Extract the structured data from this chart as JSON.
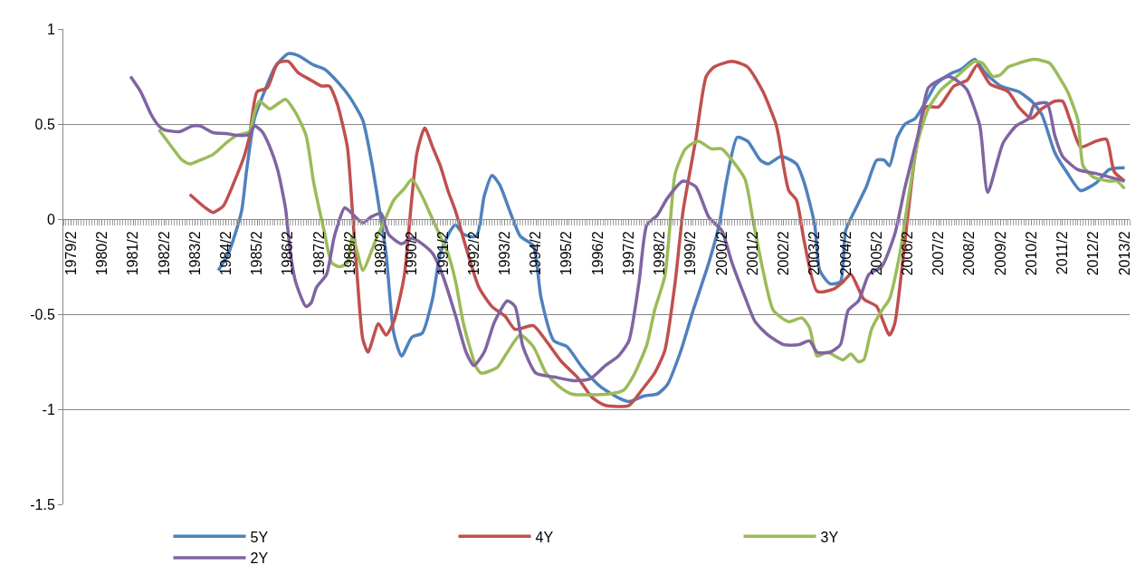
{
  "chart_data": {
    "type": "line",
    "xlim": [
      "1978-11",
      "2013-04"
    ],
    "xticks": [
      {
        "value": "1979-02",
        "label": "1979/2"
      },
      {
        "value": "1980-02",
        "label": "1980/2"
      },
      {
        "value": "1981-02",
        "label": "1981/2"
      },
      {
        "value": "1982-02",
        "label": "1982/2"
      },
      {
        "value": "1983-02",
        "label": "1983/2"
      },
      {
        "value": "1984-02",
        "label": "1984/2"
      },
      {
        "value": "1985-02",
        "label": "1985/2"
      },
      {
        "value": "1986-02",
        "label": "1986/2"
      },
      {
        "value": "1987-02",
        "label": "1987/2"
      },
      {
        "value": "1988-02",
        "label": "1988/2"
      },
      {
        "value": "1989-02",
        "label": "1989/2"
      },
      {
        "value": "1990-02",
        "label": "1990/2"
      },
      {
        "value": "1991-02",
        "label": "1991/2"
      },
      {
        "value": "1992-02",
        "label": "1992/2"
      },
      {
        "value": "1993-02",
        "label": "1993/2"
      },
      {
        "value": "1994-02",
        "label": "1994/2"
      },
      {
        "value": "1995-02",
        "label": "1995/2"
      },
      {
        "value": "1996-02",
        "label": "1996/2"
      },
      {
        "value": "1997-02",
        "label": "1997/2"
      },
      {
        "value": "1998-02",
        "label": "1998/2"
      },
      {
        "value": "1999-02",
        "label": "1999/2"
      },
      {
        "value": "2000-02",
        "label": "2000/2"
      },
      {
        "value": "2001-02",
        "label": "2001/2"
      },
      {
        "value": "2002-02",
        "label": "2002/2"
      },
      {
        "value": "2003-02",
        "label": "2003/2"
      },
      {
        "value": "2004-02",
        "label": "2004/2"
      },
      {
        "value": "2005-02",
        "label": "2005/2"
      },
      {
        "value": "2006-02",
        "label": "2006/2"
      },
      {
        "value": "2007-02",
        "label": "2007/2"
      },
      {
        "value": "2008-02",
        "label": "2008/2"
      },
      {
        "value": "2009-02",
        "label": "2009/2"
      },
      {
        "value": "2010-02",
        "label": "2010/2"
      },
      {
        "value": "2011-02",
        "label": "2011/2"
      },
      {
        "value": "2012-02",
        "label": "2012/2"
      },
      {
        "value": "2013-02",
        "label": "2013/2"
      }
    ],
    "ylim": [
      -1.5,
      1
    ],
    "yticks": [
      -1.5,
      -1,
      -0.5,
      0,
      0.5,
      1
    ],
    "grid": "y",
    "legend": "bottom",
    "marker": "none",
    "line_style": "solid",
    "series": [
      {
        "name": "5Y",
        "color": "#4f81bd",
        "x": [
          "1983-11",
          "1984-03",
          "1984-08",
          "1984-10",
          "1985-01",
          "1985-04",
          "1985-09",
          "1986-02",
          "1986-06",
          "1986-12",
          "1987-04",
          "1987-10",
          "1988-02",
          "1988-07",
          "1988-10",
          "1989-01",
          "1989-04",
          "1989-07",
          "1989-10",
          "1990-02",
          "1990-06",
          "1990-10",
          "1991-01",
          "1991-05",
          "1991-07",
          "1991-10",
          "1992-03",
          "1992-06",
          "1992-09",
          "1992-12",
          "1993-04",
          "1993-08",
          "1994-01",
          "1994-04",
          "1994-09",
          "1995-02",
          "1995-08",
          "1996-03",
          "1996-10",
          "1997-02",
          "1997-08",
          "1998-01",
          "1998-05",
          "1998-10",
          "1999-03",
          "1999-09",
          "2000-01",
          "2000-04",
          "2000-08",
          "2000-12",
          "2001-05",
          "2001-08",
          "2002-01",
          "2002-07",
          "2002-10",
          "2003-02",
          "2003-04",
          "2003-08",
          "2003-12",
          "2004-02",
          "2004-07",
          "2004-10",
          "2005-02",
          "2005-05",
          "2005-07",
          "2005-10",
          "2006-01",
          "2006-05",
          "2006-10",
          "2007-01",
          "2007-06",
          "2007-11",
          "2008-04",
          "2008-08",
          "2009-02",
          "2009-09",
          "2010-02",
          "2010-06",
          "2010-11",
          "2011-04",
          "2011-09",
          "2012-03",
          "2012-08",
          "2013-02"
        ],
        "values": [
          -0.27,
          -0.18,
          0.04,
          0.26,
          0.53,
          0.64,
          0.8,
          0.87,
          0.86,
          0.81,
          0.79,
          0.71,
          0.64,
          0.52,
          0.33,
          0.085,
          -0.18,
          -0.6,
          -0.72,
          -0.62,
          -0.6,
          -0.42,
          -0.18,
          -0.06,
          -0.03,
          -0.08,
          -0.09,
          0.12,
          0.23,
          0.18,
          0.04,
          -0.09,
          -0.14,
          -0.41,
          -0.64,
          -0.67,
          -0.78,
          -0.88,
          -0.94,
          -0.96,
          -0.93,
          -0.92,
          -0.87,
          -0.7,
          -0.48,
          -0.23,
          -0.03,
          0.21,
          0.43,
          0.41,
          0.31,
          0.29,
          0.33,
          0.29,
          0.19,
          -0.03,
          -0.27,
          -0.34,
          -0.33,
          -0.06,
          0.085,
          0.17,
          0.31,
          0.31,
          0.28,
          0.43,
          0.5,
          0.53,
          0.64,
          0.71,
          0.76,
          0.79,
          0.84,
          0.77,
          0.7,
          0.67,
          0.62,
          0.55,
          0.35,
          0.24,
          0.15,
          0.19,
          0.26,
          0.27
        ]
      },
      {
        "name": "4Y",
        "color": "#c0504d",
        "x": [
          "1982-12",
          "1983-06",
          "1983-09",
          "1984-01",
          "1984-05",
          "1984-09",
          "1984-11",
          "1985-02",
          "1985-06",
          "1985-10",
          "1986-02",
          "1986-06",
          "1986-11",
          "1987-03",
          "1987-06",
          "1987-09",
          "1988-01",
          "1988-03",
          "1988-05",
          "1988-07",
          "1988-09",
          "1989-01",
          "1989-04",
          "1989-07",
          "1989-11",
          "1990-02",
          "1990-04",
          "1990-07",
          "1990-10",
          "1991-01",
          "1991-04",
          "1991-07",
          "1991-11",
          "1992-04",
          "1992-09",
          "1993-02",
          "1993-06",
          "1994-01",
          "1994-06",
          "1994-12",
          "1995-06",
          "1995-12",
          "1996-05",
          "1997-02",
          "1997-07",
          "1997-12",
          "1998-04",
          "1998-08",
          "1998-11",
          "1999-04",
          "1999-08",
          "1999-11",
          "2000-06",
          "2000-12",
          "2001-06",
          "2001-11",
          "2001-12",
          "2002-04",
          "2002-07",
          "2002-10",
          "2003-03",
          "2003-09",
          "2004-01",
          "2004-04",
          "2004-09",
          "2005-02",
          "2005-07",
          "2005-09",
          "2006-01",
          "2006-05",
          "2006-09",
          "2007-02",
          "2007-08",
          "2008-01",
          "2008-05",
          "2008-10",
          "2009-05",
          "2009-09",
          "2010-02",
          "2010-06",
          "2010-11",
          "2011-02",
          "2011-05",
          "2011-09",
          "2012-03",
          "2012-07",
          "2012-10",
          "2013-02"
        ],
        "values": [
          0.13,
          0.06,
          0.035,
          0.07,
          0.19,
          0.33,
          0.43,
          0.67,
          0.69,
          0.82,
          0.83,
          0.77,
          0.73,
          0.7,
          0.7,
          0.61,
          0.38,
          0.04,
          -0.33,
          -0.63,
          -0.7,
          -0.55,
          -0.61,
          -0.54,
          -0.3,
          0.12,
          0.35,
          0.48,
          0.38,
          0.28,
          0.15,
          0.04,
          -0.15,
          -0.36,
          -0.46,
          -0.51,
          -0.58,
          -0.56,
          -0.64,
          -0.75,
          -0.83,
          -0.94,
          -0.98,
          -0.98,
          -0.9,
          -0.81,
          -0.69,
          -0.33,
          0.04,
          0.42,
          0.75,
          0.8,
          0.83,
          0.8,
          0.67,
          0.5,
          0.44,
          0.15,
          0.1,
          -0.12,
          -0.38,
          -0.37,
          -0.33,
          -0.29,
          -0.42,
          -0.46,
          -0.61,
          -0.55,
          -0.11,
          0.34,
          0.59,
          0.59,
          0.7,
          0.73,
          0.81,
          0.71,
          0.67,
          0.59,
          0.53,
          0.58,
          0.62,
          0.62,
          0.52,
          0.38,
          0.41,
          0.42,
          0.25,
          0.2
        ]
      },
      {
        "name": "3Y",
        "color": "#9bbb59",
        "x": [
          "1981-12",
          "1982-05",
          "1982-09",
          "1982-12",
          "1983-04",
          "1983-09",
          "1984-02",
          "1984-06",
          "1984-11",
          "1985-01",
          "1985-03",
          "1985-07",
          "1986-01",
          "1986-05",
          "1986-09",
          "1986-12",
          "1987-04",
          "1987-07",
          "1987-10",
          "1988-01",
          "1988-03",
          "1988-05",
          "1988-07",
          "1988-12",
          "1989-04",
          "1989-07",
          "1989-11",
          "1990-02",
          "1990-06",
          "1990-09",
          "1991-01",
          "1991-04",
          "1991-07",
          "1991-10",
          "1992-03",
          "1992-05",
          "1992-11",
          "1993-03",
          "1993-08",
          "1994-01",
          "1994-06",
          "1994-11",
          "1995-04",
          "1996-06",
          "1996-12",
          "1997-04",
          "1997-09",
          "1997-12",
          "1998-04",
          "1998-06",
          "1998-08",
          "1998-12",
          "1999-05",
          "1999-10",
          "2000-02",
          "2000-06",
          "2000-11",
          "2001-02",
          "2001-06",
          "2001-10",
          "2002-04",
          "2002-09",
          "2002-12",
          "2003-03",
          "2003-07",
          "2004-01",
          "2004-04",
          "2004-07",
          "2004-09",
          "2004-12",
          "2005-04",
          "2005-07",
          "2005-11",
          "2006-02",
          "2006-06",
          "2006-10",
          "2007-03",
          "2007-09",
          "2008-04",
          "2008-07",
          "2008-11",
          "2009-02",
          "2009-05",
          "2009-09",
          "2010-03",
          "2010-09",
          "2011-01",
          "2011-04",
          "2011-08",
          "2011-10",
          "2012-02",
          "2012-08",
          "2012-11",
          "2013-02"
        ],
        "values": [
          0.47,
          0.38,
          0.31,
          0.29,
          0.31,
          0.34,
          0.4,
          0.44,
          0.46,
          0.56,
          0.62,
          0.58,
          0.63,
          0.56,
          0.44,
          0.19,
          -0.06,
          -0.23,
          -0.25,
          -0.23,
          -0.09,
          -0.18,
          -0.27,
          -0.11,
          0.01,
          0.1,
          0.16,
          0.21,
          0.12,
          0.03,
          -0.09,
          -0.18,
          -0.33,
          -0.55,
          -0.78,
          -0.81,
          -0.78,
          -0.7,
          -0.61,
          -0.67,
          -0.81,
          -0.88,
          -0.92,
          -0.92,
          -0.9,
          -0.82,
          -0.66,
          -0.48,
          -0.3,
          -0.03,
          0.24,
          0.37,
          0.41,
          0.37,
          0.37,
          0.31,
          0.21,
          0.0,
          -0.27,
          -0.48,
          -0.54,
          -0.52,
          -0.57,
          -0.72,
          -0.7,
          -0.74,
          -0.71,
          -0.75,
          -0.74,
          -0.58,
          -0.48,
          -0.42,
          -0.18,
          0.085,
          0.41,
          0.58,
          0.68,
          0.75,
          0.83,
          0.82,
          0.75,
          0.76,
          0.8,
          0.82,
          0.84,
          0.82,
          0.74,
          0.67,
          0.52,
          0.28,
          0.22,
          0.2,
          0.2,
          0.16
        ]
      },
      {
        "name": "2Y",
        "color": "#8064a2",
        "x": [
          "1981-01",
          "1981-05",
          "1981-09",
          "1981-12",
          "1982-02",
          "1982-08",
          "1983-01",
          "1983-04",
          "1983-09",
          "1984-02",
          "1984-07",
          "1984-11",
          "1985-01",
          "1985-04",
          "1985-07",
          "1985-10",
          "1986-01",
          "1986-03",
          "1986-05",
          "1986-09",
          "1986-11",
          "1987-01",
          "1987-05",
          "1987-08",
          "1987-12",
          "1988-02",
          "1988-07",
          "1988-10",
          "1989-02",
          "1989-05",
          "1989-10",
          "1990-02",
          "1990-06",
          "1990-10",
          "1991-02",
          "1991-07",
          "1991-11",
          "1992-02",
          "1992-06",
          "1992-10",
          "1993-03",
          "1993-06",
          "1993-09",
          "1994-02",
          "1994-09",
          "1995-05",
          "1995-11",
          "1996-05",
          "1996-10",
          "1997-02",
          "1997-06",
          "1997-09",
          "1998-01",
          "1998-05",
          "1998-11",
          "1999-04",
          "1999-09",
          "2000-02",
          "2000-06",
          "2000-11",
          "2001-03",
          "2001-08",
          "2002-02",
          "2002-08",
          "2002-12",
          "2003-03",
          "2003-08",
          "2003-12",
          "2004-03",
          "2004-07",
          "2004-11",
          "2005-04",
          "2005-09",
          "2006-01",
          "2006-06",
          "2006-10",
          "2007-02",
          "2007-06",
          "2007-10",
          "2008-01",
          "2008-06",
          "2008-09",
          "2009-03",
          "2009-08",
          "2010-01",
          "2010-03",
          "2010-08",
          "2010-11",
          "2011-02",
          "2011-08",
          "2012-03",
          "2013-02"
        ],
        "values": [
          0.75,
          0.67,
          0.55,
          0.49,
          0.47,
          0.46,
          0.49,
          0.49,
          0.455,
          0.45,
          0.44,
          0.445,
          0.49,
          0.46,
          0.38,
          0.26,
          0.06,
          -0.18,
          -0.33,
          -0.46,
          -0.44,
          -0.36,
          -0.29,
          -0.09,
          0.06,
          0.04,
          -0.02,
          0.01,
          0.03,
          -0.08,
          -0.13,
          -0.1,
          -0.13,
          -0.18,
          -0.3,
          -0.51,
          -0.7,
          -0.77,
          -0.7,
          -0.54,
          -0.43,
          -0.46,
          -0.67,
          -0.81,
          -0.83,
          -0.85,
          -0.84,
          -0.77,
          -0.72,
          -0.64,
          -0.33,
          -0.03,
          0.02,
          0.11,
          0.2,
          0.17,
          0.01,
          -0.06,
          -0.23,
          -0.41,
          -0.54,
          -0.61,
          -0.66,
          -0.66,
          -0.64,
          -0.7,
          -0.7,
          -0.66,
          -0.48,
          -0.43,
          -0.29,
          -0.25,
          -0.08,
          0.17,
          0.44,
          0.69,
          0.73,
          0.75,
          0.72,
          0.68,
          0.49,
          0.14,
          0.4,
          0.49,
          0.53,
          0.6,
          0.61,
          0.44,
          0.33,
          0.26,
          0.24,
          0.2
        ]
      }
    ]
  }
}
